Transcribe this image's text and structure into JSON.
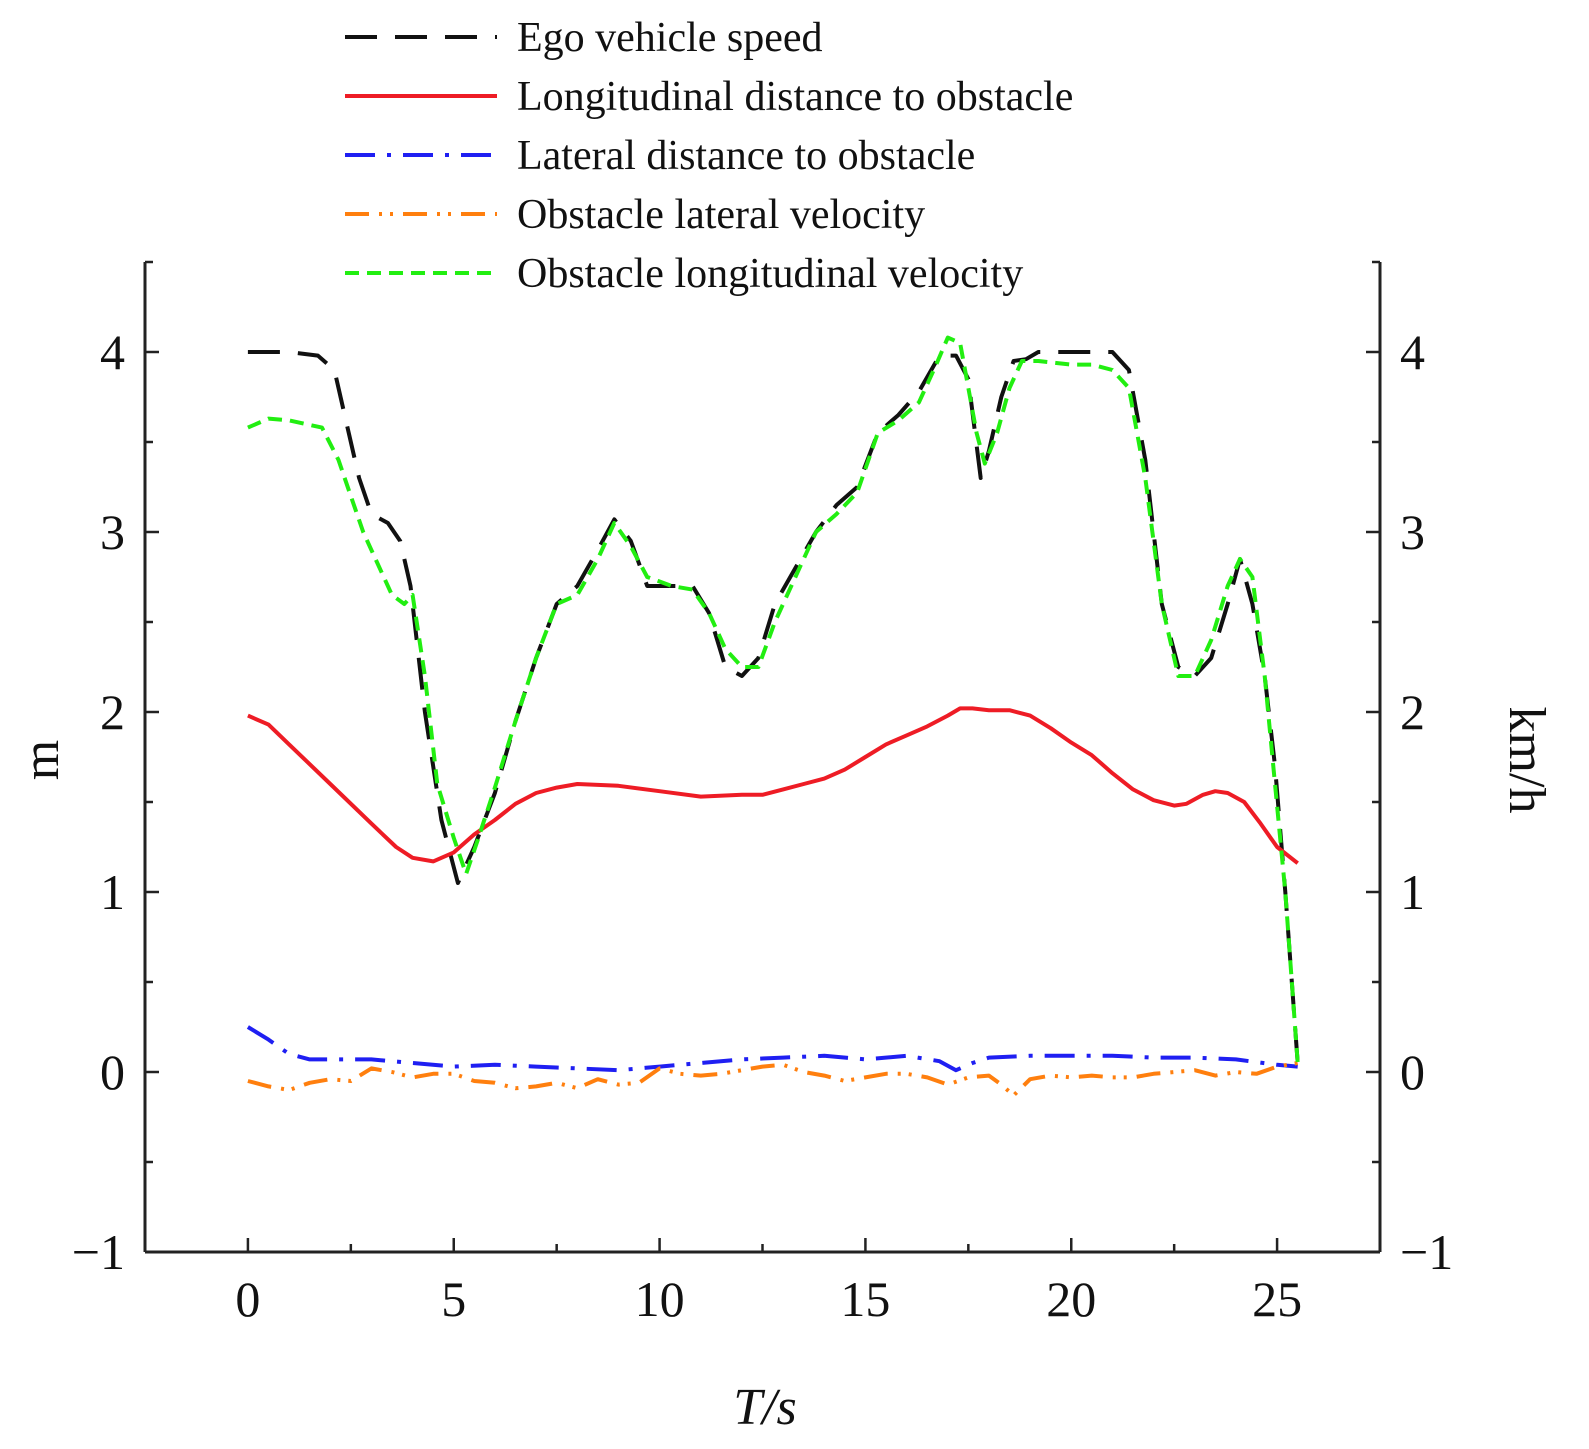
{
  "chart_data": {
    "type": "line",
    "title": "",
    "xlabel": "T/s",
    "ylabel_left": "m",
    "ylabel_right": "km/h",
    "xlim": [
      -2.5,
      27.5
    ],
    "ylim": [
      -1,
      4.5
    ],
    "xticks": [
      0,
      5,
      10,
      15,
      20,
      25
    ],
    "xtick_labels": [
      "0",
      "5",
      "10",
      "15",
      "20",
      "25"
    ],
    "yticks": [
      -1,
      0,
      1,
      2,
      3,
      4
    ],
    "ytick_labels": [
      "−1",
      "0",
      "1",
      "2",
      "3",
      "4"
    ],
    "grid": false,
    "legend_position": "top",
    "series": [
      {
        "name": "Ego vehicle speed",
        "axis": "right",
        "color": "#111111",
        "dash": "32 18",
        "x": [
          0,
          1,
          1.7,
          2.1,
          2.4,
          2.7,
          3.0,
          3.4,
          3.7,
          3.95,
          4.3,
          4.7,
          5.1,
          5.5,
          6.0,
          6.5,
          7.0,
          7.5,
          8.0,
          8.5,
          8.9,
          9.3,
          9.7,
          10.3,
          10.8,
          11.2,
          11.6,
          12.0,
          12.4,
          12.8,
          13.3,
          13.8,
          14.3,
          14.8,
          15.3,
          15.8,
          16.3,
          16.8,
          17.2,
          17.5,
          17.8,
          18.0,
          18.3,
          18.6,
          18.9,
          19.2,
          19.6,
          20.0,
          20.5,
          21.0,
          21.4,
          21.8,
          22.2,
          22.6,
          23.0,
          23.4,
          23.8,
          24.1,
          24.4,
          24.7,
          24.95,
          25.2,
          25.5
        ],
        "values": [
          4.0,
          4.0,
          3.98,
          3.9,
          3.6,
          3.3,
          3.1,
          3.05,
          2.95,
          2.7,
          2.0,
          1.4,
          1.05,
          1.25,
          1.55,
          1.95,
          2.3,
          2.6,
          2.7,
          2.9,
          3.07,
          2.95,
          2.7,
          2.7,
          2.7,
          2.55,
          2.25,
          2.2,
          2.3,
          2.6,
          2.8,
          3.0,
          3.15,
          3.25,
          3.55,
          3.65,
          3.78,
          3.98,
          3.98,
          3.85,
          3.3,
          3.45,
          3.75,
          3.95,
          3.96,
          4.0,
          4.0,
          4.0,
          4.0,
          4.0,
          3.9,
          3.4,
          2.6,
          2.25,
          2.2,
          2.3,
          2.6,
          2.85,
          2.6,
          2.2,
          1.7,
          1.0,
          0.05
        ]
      },
      {
        "name": "Longitudinal distance to obstacle",
        "axis": "left",
        "color": "#ee1c25",
        "dash": "",
        "x": [
          0,
          0.5,
          1.0,
          2.0,
          3.0,
          3.6,
          4.0,
          4.5,
          5.0,
          5.5,
          6.0,
          6.5,
          7.0,
          7.5,
          8.0,
          9.0,
          10.0,
          11.0,
          12.0,
          12.5,
          13.0,
          13.5,
          14.0,
          14.5,
          15.0,
          15.5,
          16.0,
          16.5,
          17.0,
          17.3,
          17.6,
          18.0,
          18.5,
          19.0,
          19.5,
          20.0,
          20.5,
          21.0,
          21.5,
          22.0,
          22.5,
          22.8,
          23.2,
          23.5,
          23.8,
          24.2,
          24.6,
          25.0,
          25.5
        ],
        "values": [
          1.98,
          1.93,
          1.82,
          1.6,
          1.38,
          1.25,
          1.19,
          1.17,
          1.22,
          1.32,
          1.4,
          1.49,
          1.55,
          1.58,
          1.6,
          1.59,
          1.56,
          1.53,
          1.54,
          1.54,
          1.57,
          1.6,
          1.63,
          1.68,
          1.75,
          1.82,
          1.87,
          1.92,
          1.98,
          2.02,
          2.02,
          2.01,
          2.01,
          1.98,
          1.91,
          1.83,
          1.76,
          1.66,
          1.57,
          1.51,
          1.48,
          1.49,
          1.54,
          1.56,
          1.55,
          1.5,
          1.38,
          1.25,
          1.16
        ]
      },
      {
        "name": "Lateral distance to obstacle",
        "axis": "left",
        "color": "#1f1ff2",
        "dash": "30 12 4 12",
        "x": [
          0,
          0.5,
          1.0,
          1.5,
          2.0,
          3.0,
          4.0,
          5.0,
          6.0,
          7.0,
          8.0,
          9.0,
          10.0,
          11.0,
          12.0,
          13.0,
          14.0,
          15.0,
          16.0,
          16.8,
          17.2,
          17.6,
          18.0,
          19.0,
          20.0,
          21.0,
          22.0,
          23.0,
          24.0,
          25.0,
          25.5
        ],
        "values": [
          0.25,
          0.18,
          0.1,
          0.07,
          0.07,
          0.07,
          0.05,
          0.03,
          0.04,
          0.03,
          0.02,
          0.01,
          0.03,
          0.05,
          0.07,
          0.08,
          0.09,
          0.07,
          0.09,
          0.06,
          0.01,
          0.05,
          0.08,
          0.09,
          0.09,
          0.09,
          0.08,
          0.08,
          0.07,
          0.04,
          0.03
        ]
      },
      {
        "name": "Obstacle lateral velocity",
        "axis": "left",
        "color": "#ff7f0e",
        "dash": "24 10 3 8 3 10",
        "x": [
          0,
          0.5,
          1.0,
          1.5,
          2.0,
          2.5,
          3.0,
          3.5,
          4.0,
          4.5,
          5.0,
          5.5,
          6.0,
          6.5,
          7.0,
          7.5,
          8.0,
          8.5,
          9.0,
          9.5,
          10.0,
          10.5,
          11.0,
          11.5,
          12.0,
          12.5,
          13.0,
          13.5,
          14.0,
          14.5,
          15.0,
          15.5,
          16.0,
          16.5,
          17.0,
          17.5,
          18.0,
          18.3,
          18.6,
          19.0,
          19.5,
          20.0,
          20.5,
          21.0,
          21.5,
          22.0,
          22.5,
          23.0,
          23.5,
          24.0,
          24.5,
          25.0,
          25.5
        ],
        "values": [
          -0.05,
          -0.08,
          -0.1,
          -0.06,
          -0.04,
          -0.05,
          0.02,
          0.0,
          -0.03,
          -0.01,
          -0.01,
          -0.05,
          -0.06,
          -0.09,
          -0.08,
          -0.06,
          -0.09,
          -0.04,
          -0.07,
          -0.06,
          0.02,
          -0.01,
          -0.02,
          -0.01,
          0.01,
          0.03,
          0.04,
          0.0,
          -0.02,
          -0.05,
          -0.03,
          -0.01,
          -0.01,
          -0.03,
          -0.07,
          -0.03,
          -0.02,
          -0.07,
          -0.13,
          -0.04,
          -0.02,
          -0.03,
          -0.02,
          -0.03,
          -0.03,
          -0.01,
          0.0,
          0.01,
          -0.02,
          0.0,
          -0.01,
          0.03,
          0.05
        ]
      },
      {
        "name": "Obstacle longitudinal velocity",
        "axis": "right",
        "color": "#22ee11",
        "dash": "14 8",
        "x": [
          0,
          0.5,
          1.0,
          1.8,
          2.2,
          2.5,
          2.8,
          3.1,
          3.5,
          3.8,
          4.0,
          4.3,
          4.6,
          5.0,
          5.3,
          5.6,
          6.0,
          6.5,
          7.0,
          7.5,
          8.0,
          8.5,
          8.9,
          9.3,
          9.7,
          10.3,
          10.8,
          11.2,
          11.6,
          12.0,
          12.4,
          12.8,
          13.3,
          13.8,
          14.3,
          14.8,
          15.3,
          15.8,
          16.3,
          16.7,
          17.0,
          17.3,
          17.7,
          17.9,
          18.2,
          18.5,
          18.8,
          19.2,
          19.6,
          20.0,
          20.5,
          21.0,
          21.4,
          21.8,
          22.2,
          22.6,
          23.0,
          23.4,
          23.8,
          24.1,
          24.4,
          24.7,
          24.95,
          25.2,
          25.5
        ],
        "values": [
          3.58,
          3.63,
          3.62,
          3.58,
          3.4,
          3.2,
          3.0,
          2.85,
          2.65,
          2.6,
          2.65,
          2.2,
          1.6,
          1.3,
          1.1,
          1.3,
          1.58,
          1.95,
          2.3,
          2.6,
          2.65,
          2.85,
          3.05,
          2.92,
          2.75,
          2.7,
          2.68,
          2.55,
          2.35,
          2.25,
          2.25,
          2.5,
          2.75,
          3.0,
          3.1,
          3.22,
          3.55,
          3.62,
          3.72,
          3.92,
          4.08,
          4.05,
          3.55,
          3.38,
          3.55,
          3.8,
          3.95,
          3.95,
          3.94,
          3.93,
          3.93,
          3.9,
          3.8,
          3.3,
          2.6,
          2.2,
          2.2,
          2.4,
          2.7,
          2.85,
          2.75,
          2.2,
          1.6,
          1.0,
          0.05
        ]
      }
    ]
  }
}
